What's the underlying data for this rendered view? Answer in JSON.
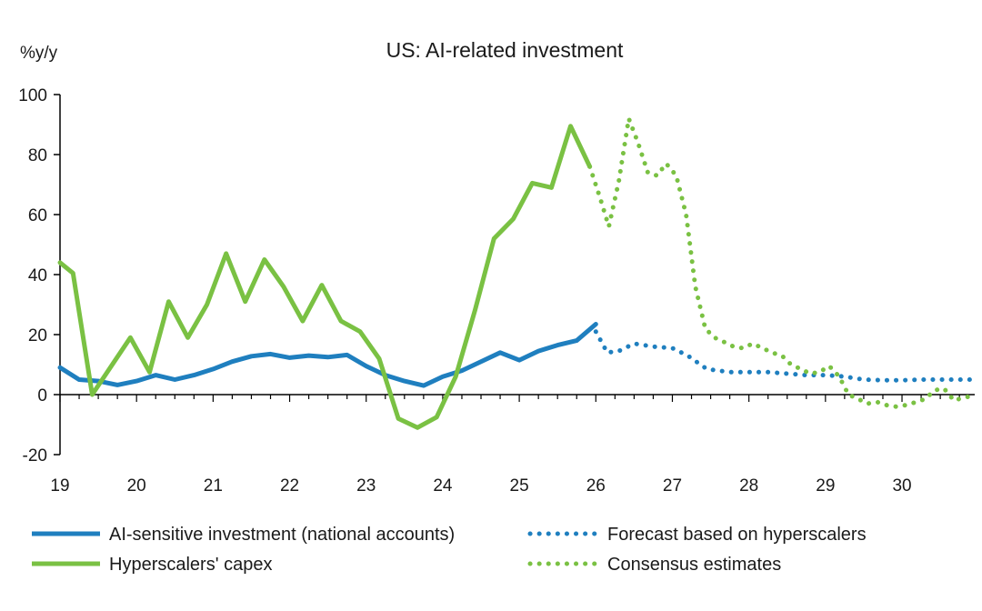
{
  "chart_data": {
    "type": "line",
    "title": "US: AI-related investment",
    "ylabel": "%y/y",
    "xlabel": "",
    "ylim": [
      -20,
      100
    ],
    "yticks": [
      -20,
      0,
      20,
      40,
      60,
      80,
      100
    ],
    "xlim": [
      19,
      30.95
    ],
    "xticks": [
      19,
      20,
      21,
      22,
      23,
      24,
      25,
      26,
      27,
      28,
      29,
      30
    ],
    "xtick_labels": [
      "19",
      "20",
      "21",
      "22",
      "23",
      "24",
      "25",
      "26",
      "27",
      "28",
      "29",
      "30"
    ],
    "colors": {
      "blue": "#1f7fbf",
      "green": "#7ac143",
      "axis": "#000000"
    },
    "series": [
      {
        "name": "AI-sensitive investment (national accounts)",
        "color": "#1f7fbf",
        "style": "solid",
        "x": [
          19,
          19.25,
          19.5,
          19.75,
          20,
          20.25,
          20.5,
          20.75,
          21,
          21.25,
          21.5,
          21.75,
          22,
          22.25,
          22.5,
          22.75,
          23,
          23.25,
          23.5,
          23.75,
          24,
          24.25,
          24.5,
          24.75,
          25,
          25.25,
          25.5,
          25.75,
          26
        ],
        "y": [
          9,
          5,
          4.5,
          3.2,
          4.5,
          6.5,
          5,
          6.5,
          8.5,
          11,
          12.8,
          13.5,
          12.3,
          13,
          12.5,
          13.2,
          9.5,
          6.5,
          4.5,
          3,
          6,
          8,
          11,
          14,
          11.5,
          14.5,
          16.5,
          18,
          23.5
        ]
      },
      {
        "name": "Forecast based on hyperscalers",
        "color": "#1f7fbf",
        "style": "dotted",
        "x": [
          26,
          26.15,
          26.3,
          26.5,
          26.75,
          27,
          27.2,
          27.45,
          27.75,
          28,
          28.25,
          28.5,
          28.75,
          29,
          29.25,
          29.5,
          29.75,
          30,
          30.25,
          30.5,
          30.75,
          30.92
        ],
        "y": [
          21,
          14,
          14.5,
          17,
          16,
          15.5,
          13,
          8.5,
          7.5,
          7.5,
          7.5,
          7,
          6.5,
          6.5,
          6,
          5,
          4.8,
          4.8,
          5,
          5,
          5,
          5
        ]
      },
      {
        "name": "Hyperscalers' capex",
        "color": "#7ac143",
        "style": "solid",
        "x": [
          19,
          19.17,
          19.42,
          19.67,
          19.92,
          20.17,
          20.42,
          20.67,
          20.92,
          21.17,
          21.42,
          21.67,
          21.92,
          22.17,
          22.42,
          22.67,
          22.92,
          23.17,
          23.42,
          23.67,
          23.92,
          24.17,
          24.42,
          24.67,
          24.92,
          25.17,
          25.42,
          25.67,
          25.92
        ],
        "y": [
          44,
          40.5,
          0,
          9.5,
          19,
          7.5,
          31,
          19,
          30,
          47,
          31,
          45,
          36,
          24.5,
          36.5,
          24.5,
          21,
          12,
          -8,
          -11,
          -7.5,
          6,
          28,
          52,
          58.5,
          70.5,
          69,
          89.5,
          76
        ]
      },
      {
        "name": "Consensus estimates",
        "color": "#7ac143",
        "style": "dotted",
        "x": [
          25.92,
          26.05,
          26.17,
          26.3,
          26.43,
          26.55,
          26.68,
          26.8,
          26.92,
          27.05,
          27.18,
          27.3,
          27.43,
          27.55,
          27.68,
          27.8,
          27.92,
          28.05,
          28.18,
          28.3,
          28.43,
          28.55,
          28.68,
          28.8,
          28.92,
          29.05,
          29.18,
          29.3,
          29.43,
          29.55,
          29.68,
          29.8,
          29.92,
          30.05,
          30.18,
          30.3,
          30.43,
          30.55,
          30.68,
          30.8,
          30.92
        ],
        "y": [
          76,
          66,
          56,
          71,
          92,
          84,
          74,
          73,
          77,
          73,
          60,
          36,
          22,
          19,
          17.5,
          16,
          15.5,
          17,
          15.5,
          14,
          13,
          10,
          8.5,
          7,
          7.5,
          9.5,
          6,
          0,
          -1.5,
          -3,
          -2.5,
          -3.5,
          -4,
          -3.5,
          -2.5,
          -1.5,
          1.5,
          2,
          -2,
          -1,
          -0.5
        ]
      }
    ],
    "legend": {
      "placement": "bottom",
      "entries": [
        {
          "label": "AI-sensitive investment (national accounts)",
          "series": 0
        },
        {
          "label": "Forecast based on hyperscalers",
          "series": 1
        },
        {
          "label": "Hyperscalers' capex",
          "series": 2
        },
        {
          "label": "Consensus estimates",
          "series": 3
        }
      ]
    }
  }
}
